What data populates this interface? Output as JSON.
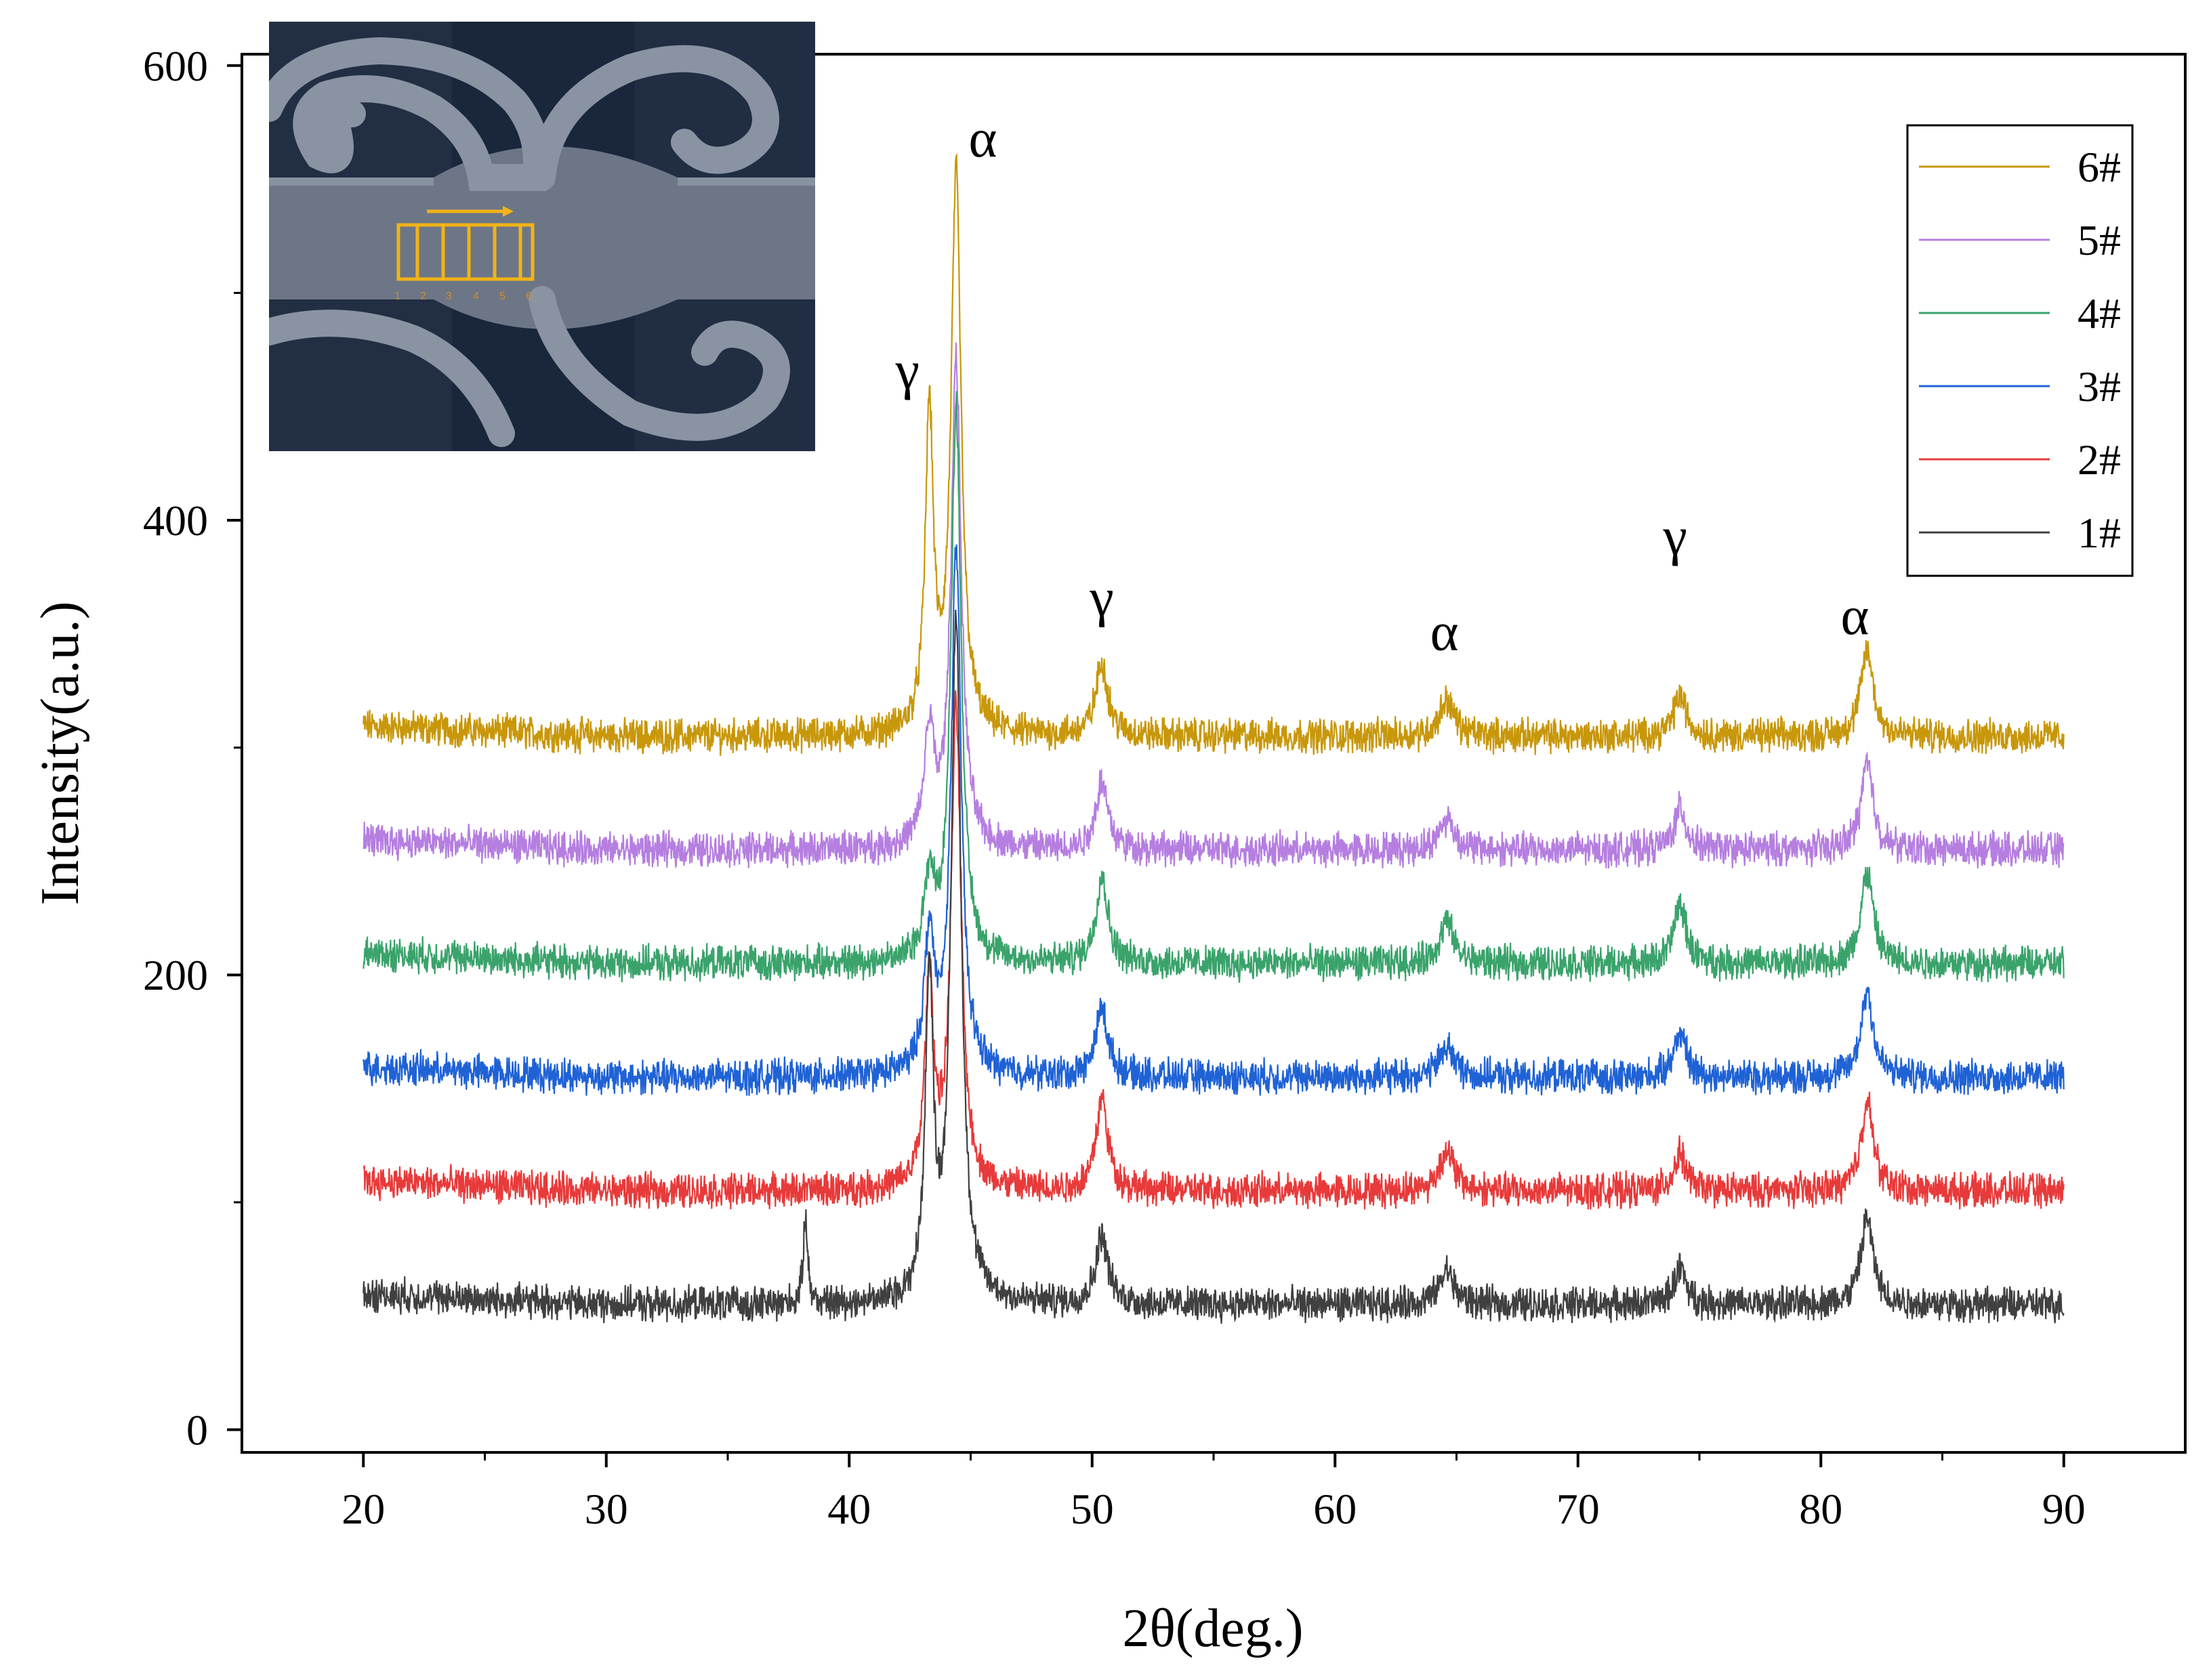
{
  "chart_data": {
    "type": "line",
    "title": "",
    "xlabel": "2θ(deg.)",
    "ylabel": "Intensity(a.u.)",
    "xlim": [
      15,
      95
    ],
    "ylim": [
      -10,
      605
    ],
    "x_ticks": [
      20,
      30,
      40,
      50,
      60,
      70,
      80,
      90
    ],
    "y_ticks": [
      0,
      200,
      400,
      600
    ],
    "x_minor_step": 5,
    "y_minor_step": 100,
    "grid": false,
    "legend_position": "top-right",
    "x_range": [
      20,
      90
    ],
    "peaks": [
      {
        "label": "γ",
        "x": 43.3
      },
      {
        "label": "α",
        "x": 44.4
      },
      {
        "label": "γ",
        "x": 50.4
      },
      {
        "label": "α",
        "x": 64.6
      },
      {
        "label": "γ",
        "x": 74.2
      },
      {
        "label": "α",
        "x": 81.9
      }
    ],
    "peak_labels": [
      {
        "text": "γ",
        "x": 42.4,
        "y": 458
      },
      {
        "text": "α",
        "x": 45.5,
        "y": 560
      },
      {
        "text": "γ",
        "x": 50.4,
        "y": 358
      },
      {
        "text": "α",
        "x": 64.5,
        "y": 343
      },
      {
        "text": "γ",
        "x": 74.0,
        "y": 385
      },
      {
        "text": "α",
        "x": 81.4,
        "y": 350
      }
    ],
    "series": [
      {
        "name": "6#",
        "color": "#c8970a",
        "baseline": 305,
        "noise": 6,
        "peaks": [
          [
            43.3,
            140,
            0.2
          ],
          [
            44.4,
            245,
            0.25
          ],
          [
            50.4,
            32,
            0.3
          ],
          [
            64.6,
            16,
            0.35
          ],
          [
            74.2,
            18,
            0.3
          ],
          [
            81.9,
            38,
            0.3
          ]
        ]
      },
      {
        "name": "5#",
        "color": "#b57ee0",
        "baseline": 255,
        "noise": 6,
        "peaks": [
          [
            43.3,
            50,
            0.25
          ],
          [
            44.4,
            215,
            0.25
          ],
          [
            50.4,
            30,
            0.3
          ],
          [
            64.6,
            14,
            0.35
          ],
          [
            74.2,
            18,
            0.3
          ],
          [
            81.9,
            38,
            0.3
          ]
        ]
      },
      {
        "name": "4#",
        "color": "#3aa36b",
        "baseline": 205,
        "noise": 6,
        "peaks": [
          [
            43.3,
            35,
            0.25
          ],
          [
            44.4,
            245,
            0.25
          ],
          [
            50.4,
            38,
            0.3
          ],
          [
            64.6,
            18,
            0.35
          ],
          [
            74.2,
            26,
            0.3
          ],
          [
            81.9,
            40,
            0.3
          ]
        ]
      },
      {
        "name": "3#",
        "color": "#1f62d6",
        "baseline": 155,
        "noise": 6,
        "peaks": [
          [
            43.3,
            60,
            0.25
          ],
          [
            44.4,
            230,
            0.25
          ],
          [
            50.4,
            30,
            0.3
          ],
          [
            64.6,
            14,
            0.35
          ],
          [
            74.2,
            20,
            0.3
          ],
          [
            81.9,
            38,
            0.3
          ]
        ]
      },
      {
        "name": "2#",
        "color": "#e83a3a",
        "baseline": 105,
        "noise": 6,
        "peaks": [
          [
            43.3,
            90,
            0.22
          ],
          [
            44.4,
            210,
            0.25
          ],
          [
            50.4,
            40,
            0.3
          ],
          [
            64.6,
            18,
            0.35
          ],
          [
            74.2,
            16,
            0.3
          ],
          [
            81.9,
            40,
            0.3
          ]
        ]
      },
      {
        "name": "1#",
        "color": "#404040",
        "baseline": 55,
        "noise": 6,
        "peaks": [
          [
            38.2,
            40,
            0.1
          ],
          [
            43.3,
            140,
            0.2
          ],
          [
            44.4,
            300,
            0.25
          ],
          [
            50.4,
            30,
            0.3
          ],
          [
            64.6,
            15,
            0.35
          ],
          [
            74.2,
            16,
            0.3
          ],
          [
            81.9,
            38,
            0.3
          ]
        ]
      }
    ]
  },
  "inset": {
    "numbers": [
      "1",
      "2",
      "3",
      "4",
      "5",
      "6"
    ],
    "box_color": "#f2b317",
    "image_desc": "sample"
  }
}
